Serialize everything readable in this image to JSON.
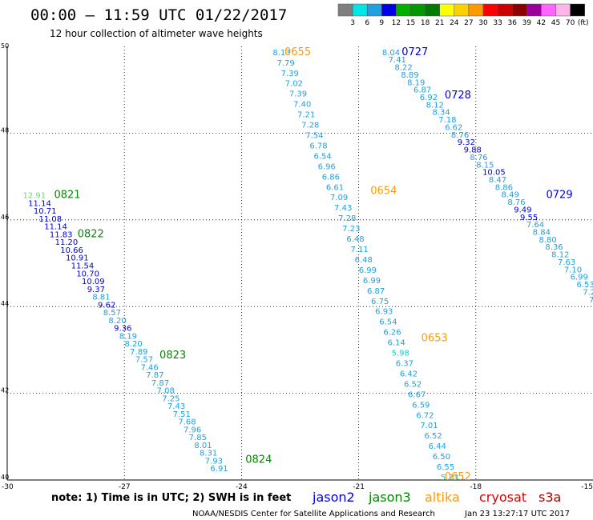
{
  "header": {
    "title": "00:00 – 11:59 UTC 01/22/2017",
    "subtitle": "12 hour collection of altimeter wave heights"
  },
  "legend": {
    "colors": [
      "#7f7f7f",
      "#00e5e5",
      "#1fa0e0",
      "#0000e8",
      "#00b000",
      "#009a00",
      "#007a00",
      "#ffff00",
      "#ffd000",
      "#ff9900",
      "#ff0000",
      "#cc0000",
      "#8b0000",
      "#9b009b",
      "#ff66ff",
      "#ffb6e6",
      "#000000"
    ],
    "labels": [
      "3",
      "6",
      "9",
      "12",
      "15",
      "18",
      "21",
      "24",
      "27",
      "30",
      "33",
      "36",
      "39",
      "42",
      "45",
      "70",
      "(ft)"
    ]
  },
  "footer": {
    "note": "note: 1) Time is in UTC; 2) SWH is in feet",
    "credit": "NOAA/NESDIS Center for Satellite Applications and Research",
    "timestamp": "Jan 23 13:27:17 UTC 2017"
  },
  "satellites": [
    {
      "name": "jason2",
      "color": "#0000e0"
    },
    {
      "name": "jason3",
      "color": "#008800"
    },
    {
      "name": "altika",
      "color": "#ff9900"
    },
    {
      "name": "cryosat",
      "color": "#dd0000"
    },
    {
      "name": "s3a",
      "color": "#aa0000"
    }
  ],
  "chart_data": {
    "type": "scatter",
    "xlim": [
      -30,
      -15
    ],
    "ylim": [
      40,
      50
    ],
    "x_ticks": [
      "-30",
      "-27",
      "-24",
      "-21",
      "-18",
      "-15"
    ],
    "y_ticks": [
      "50",
      "48",
      "46",
      "44",
      "42",
      "40"
    ],
    "grid": true,
    "tracks": [
      {
        "satellite": "altika",
        "color": "#ff9900",
        "time_labels": [
          {
            "text": "0655",
            "lon": -22.9,
            "lat": 49.8
          },
          {
            "text": "0654",
            "lon": -20.7,
            "lat": 46.6
          },
          {
            "text": "0653",
            "lon": -19.4,
            "lat": 43.2
          },
          {
            "text": "0652",
            "lon": -18.8,
            "lat": 40.0
          }
        ],
        "start": {
          "lon": -23.2,
          "lat": 49.8
        },
        "end": {
          "lon": -18.9,
          "lat": 40.0
        },
        "values": [
          "8.13",
          "7.79",
          "7.39",
          "7.02",
          "7.39",
          "7.40",
          "7.21",
          "7.28",
          "7.54",
          "6.78",
          "6.54",
          "6.96",
          "6.86",
          "6.61",
          "7.09",
          "7.43",
          "7.28",
          "7.23",
          "6.48",
          "7.11",
          "6.48",
          "6.99",
          "6.99",
          "6.87",
          "6.75",
          "6.93",
          "6.54",
          "6.26",
          "6.14",
          "5.98",
          "6.37",
          "6.42",
          "6.52",
          "6.67",
          "6.59",
          "6.72",
          "7.01",
          "6.52",
          "6.44",
          "6.50",
          "6.55",
          "5.73"
        ]
      },
      {
        "satellite": "jason2",
        "color": "#0000e0",
        "time_labels": [
          {
            "text": "0727",
            "lon": -19.9,
            "lat": 49.8
          },
          {
            "text": "0728",
            "lon": -18.8,
            "lat": 48.8
          },
          {
            "text": "0729",
            "lon": -16.2,
            "lat": 46.5
          }
        ],
        "start": {
          "lon": -20.4,
          "lat": 49.8
        },
        "end": {
          "lon": -15.1,
          "lat": 44.1
        },
        "values": [
          "8.04",
          "7.41",
          "8.22",
          "8.89",
          "8.19",
          "6.87",
          "6.92",
          "8.12",
          "8.34",
          "7.18",
          "6.62",
          "8.76",
          "9.32",
          "9.88",
          "8.76",
          "8.15",
          "10.05",
          "8.47",
          "8.86",
          "8.49",
          "8.76",
          "9.49",
          "9.55",
          "7.64",
          "8.84",
          "8.80",
          "8.36",
          "8.12",
          "7.63",
          "7.10",
          "6.99",
          "6.53",
          "7.22",
          "7.1"
        ]
      },
      {
        "satellite": "jason3",
        "color": "#008800",
        "time_labels": [
          {
            "text": "0821",
            "lon": -28.8,
            "lat": 46.5
          },
          {
            "text": "0822",
            "lon": -28.2,
            "lat": 45.6
          },
          {
            "text": "0823",
            "lon": -26.1,
            "lat": 42.8
          },
          {
            "text": "0824",
            "lon": -23.9,
            "lat": 40.4
          }
        ],
        "start": {
          "lon": -29.6,
          "lat": 46.5
        },
        "end": {
          "lon": -24.8,
          "lat": 40.2
        },
        "values": [
          "12.91",
          "11.14",
          "10.71",
          "11.08",
          "11.14",
          "11.83",
          "11.20",
          "10.66",
          "10.91",
          "11.54",
          "10.70",
          "10.09",
          "9.37",
          "8.81",
          "9.62",
          "8.57",
          "8.20",
          "9.36",
          "8.19",
          "8.20",
          "7.89",
          "7.57",
          "7.46",
          "7.87",
          "7.87",
          "7.08",
          "7.25",
          "7.43",
          "7.51",
          "7.68",
          "7.96",
          "7.85",
          "8.01",
          "8.31",
          "7.93",
          "6.91"
        ]
      }
    ]
  }
}
